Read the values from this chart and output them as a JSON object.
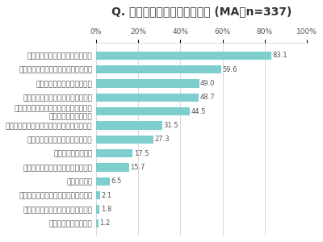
{
  "title": "Q. 子供の運動に期待すること (MA／n=337)",
  "categories": [
    "体力をつけ、丈夫になってほしい",
    "運動を通して精神的に成長してほしい",
    "少しでも運動能力を高めたい",
    "運動を通して、自信を付けてほしい",
    "運動を通して、協調性やチームプレイの\n大切さを学んでほしい",
    "運動を通して、マナーや礼儀を学んでほしい",
    "運動を通して友人を作ってほしい",
    "筋肉をつけてほしい",
    "運動して、夜たっぷり眠ってほしい",
    "やせてほしい",
    "運動で目立って人気者になってほしい",
    "運動を通して親子関係を良くしたい",
    "特に期待する事はない"
  ],
  "values": [
    83.1,
    59.6,
    49.0,
    48.7,
    44.5,
    31.5,
    27.3,
    17.5,
    15.7,
    6.5,
    2.1,
    1.8,
    1.2
  ],
  "bar_color": "#7ecece",
  "label_color": "#555555",
  "value_color": "#555555",
  "title_color": "#333333",
  "background_color": "#ffffff",
  "xlim": [
    0,
    100
  ],
  "xticks": [
    0,
    20,
    40,
    60,
    80,
    100
  ],
  "xtick_labels": [
    "0%",
    "20%",
    "40%",
    "60%",
    "80%",
    "100%"
  ],
  "title_fontsize": 10,
  "label_fontsize": 6.5,
  "value_fontsize": 6.0,
  "tick_fontsize": 6.5
}
